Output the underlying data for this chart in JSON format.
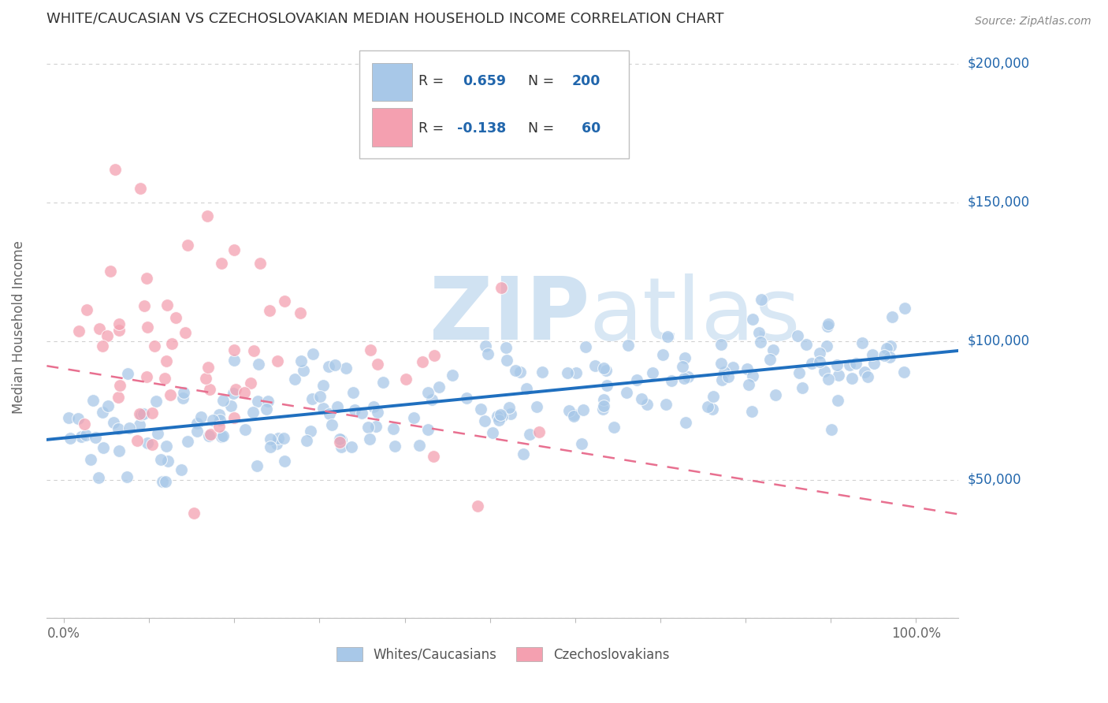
{
  "title": "WHITE/CAUCASIAN VS CZECHOSLOVAKIAN MEDIAN HOUSEHOLD INCOME CORRELATION CHART",
  "source": "Source: ZipAtlas.com",
  "ylabel": "Median Household Income",
  "blue_R": 0.659,
  "blue_N": 200,
  "pink_R": -0.138,
  "pink_N": 60,
  "blue_color": "#a8c8e8",
  "pink_color": "#f4a0b0",
  "blue_edge_color": "#7aaed0",
  "pink_edge_color": "#e87090",
  "blue_line_color": "#1f6fbf",
  "pink_line_color": "#e87090",
  "watermark_color": "#dae8f5",
  "legend_labels": [
    "Whites/Caucasians",
    "Czechoslovakians"
  ],
  "y_min": 0,
  "y_max": 210000,
  "x_min": -0.02,
  "x_max": 1.05,
  "background_color": "#ffffff",
  "grid_color": "#d0d0d0",
  "title_color": "#333333",
  "axis_label_color": "#666666",
  "right_tick_color": "#2166ac",
  "title_fontsize": 13,
  "source_fontsize": 10,
  "label_fontsize": 12
}
